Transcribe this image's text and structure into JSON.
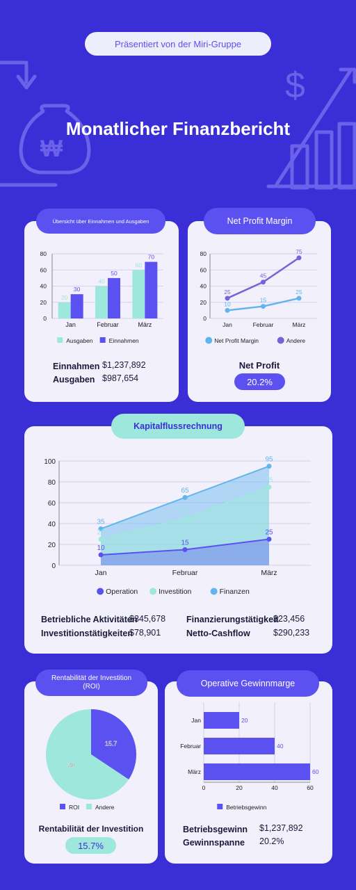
{
  "header": {
    "presented_by": "Präsentiert von der Miri-Gruppe",
    "title": "Monatlicher Finanzbericht"
  },
  "colors": {
    "background": "#3a2fd6",
    "card": "#f1f0fb",
    "accent_blue": "#5b50f0",
    "accent_teal": "#9ee7dc",
    "light_blue": "#62b4ee"
  },
  "income_expense": {
    "title": "Übersicht über Einnahmen und Ausgaben",
    "einnahmen_label": "Einnahmen",
    "einnahmen_value": "$1,237,892",
    "ausgaben_label": "Ausgaben",
    "ausgaben_value": "$987,654"
  },
  "net_profit": {
    "title": "Net Profit Margin",
    "label": "Net Profit",
    "value": "20.2%"
  },
  "cashflow": {
    "title": "Kapitalflussrechnung",
    "betrieb_label": "Betriebliche Aktivitäten",
    "betrieb_value": "$345,678",
    "invest_label": "Investitionstätigkeiten",
    "invest_value": "$78,901",
    "finanz_label": "Finanzierungstätigkeit",
    "finanz_value": "$23,456",
    "netto_label": "Netto-Cashflow",
    "netto_value": "$290,233"
  },
  "roi": {
    "title_line1": "Rentabilität der Investition",
    "title_line2": "(ROI)",
    "label": "Rentabilität der Investition",
    "value": "15.7%"
  },
  "operating": {
    "title": "Operative Gewinnmarge",
    "gewinn_label": "Betriebsgewinn",
    "gewinn_value": "$1,237,892",
    "spanne_label": "Gewinnspanne",
    "spanne_value": "20.2%"
  },
  "chart_data": [
    {
      "type": "bar",
      "categories": [
        "Jan",
        "Februar",
        "März"
      ],
      "series": [
        {
          "name": "Ausgaben",
          "values": [
            20,
            40,
            60
          ],
          "color": "#9ee7dc"
        },
        {
          "name": "Einnahmen",
          "values": [
            30,
            50,
            70
          ],
          "color": "#5b50f0"
        }
      ],
      "yticks": [
        0,
        20,
        40,
        60,
        80
      ],
      "ylim": [
        0,
        80
      ],
      "legend": "bottom"
    },
    {
      "type": "line",
      "categories": [
        "Jan",
        "Februar",
        "März"
      ],
      "series": [
        {
          "name": "Net Profit Margin",
          "values": [
            10,
            15,
            25
          ],
          "color": "#62b4ee"
        },
        {
          "name": "Andere",
          "values": [
            25,
            45,
            75
          ],
          "color": "#7365d6"
        }
      ],
      "yticks": [
        0,
        20,
        40,
        60,
        80
      ],
      "ylim": [
        0,
        80
      ],
      "legend": "bottom"
    },
    {
      "type": "area",
      "categories": [
        "Jan",
        "Februar",
        "März"
      ],
      "series": [
        {
          "name": "Operation",
          "values": [
            10,
            15,
            25
          ],
          "color": "#5b50f0"
        },
        {
          "name": "Investition",
          "values": [
            25,
            45,
            75
          ],
          "color": "#9ee7dc"
        },
        {
          "name": "Finanzen",
          "values": [
            35,
            65,
            95
          ],
          "color": "#62b4ee"
        }
      ],
      "yticks": [
        0,
        20,
        40,
        60,
        80,
        100
      ],
      "ylim": [
        0,
        100
      ],
      "legend": "bottom"
    },
    {
      "type": "pie",
      "labels": [
        "ROI",
        "Andere"
      ],
      "values": [
        15.7,
        30
      ],
      "colors": [
        "#5b50f0",
        "#9ee7dc"
      ],
      "legend": "bottom"
    },
    {
      "type": "bar",
      "orientation": "horizontal",
      "categories": [
        "Jan",
        "Februar",
        "März"
      ],
      "series": [
        {
          "name": "Betriebsgewinn",
          "values": [
            20,
            40,
            60
          ],
          "color": "#5b50f0"
        }
      ],
      "xticks": [
        0,
        20,
        40,
        60
      ],
      "xlim": [
        0,
        60
      ],
      "legend": "bottom"
    }
  ]
}
